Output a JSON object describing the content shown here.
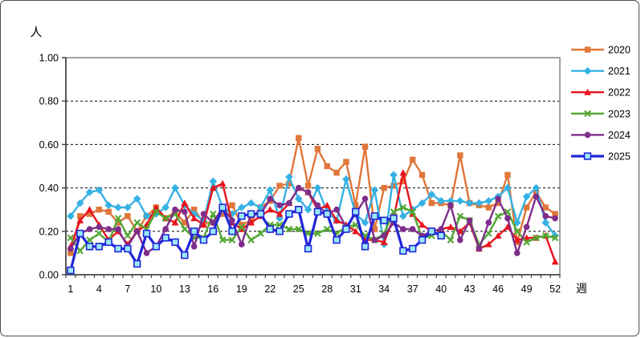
{
  "chart": {
    "y_axis_title": "人",
    "x_axis_title": "週",
    "y_tick_labels": [
      "0.00",
      "0.20",
      "0.40",
      "0.60",
      "0.80",
      "1.00"
    ],
    "x_tick_labels": [
      1,
      4,
      7,
      10,
      13,
      16,
      19,
      22,
      25,
      28,
      31,
      34,
      37,
      40,
      43,
      46,
      49,
      52
    ],
    "legend_labels": [
      "2020",
      "2021",
      "2022",
      "2023",
      "2024",
      "2025"
    ]
  },
  "chart_data": {
    "type": "line",
    "title": "",
    "xlabel": "週",
    "ylabel": "人",
    "x_min": 1,
    "x_max": 52,
    "x_ticks": [
      1,
      4,
      7,
      10,
      13,
      16,
      19,
      22,
      25,
      28,
      31,
      34,
      37,
      40,
      43,
      46,
      49,
      52
    ],
    "ylim": [
      0,
      1
    ],
    "y_tick_step": 0.2,
    "grid": "horizontal-dashed",
    "legend_position": "right",
    "series": [
      {
        "name": "2020",
        "color": "#E0763A",
        "marker": "square",
        "line_width": 2.4,
        "values": [
          0.1,
          0.27,
          0.28,
          0.3,
          0.29,
          0.24,
          0.27,
          0.2,
          0.27,
          0.31,
          0.26,
          0.29,
          0.24,
          0.3,
          0.24,
          0.24,
          0.28,
          0.32,
          0.23,
          0.25,
          0.31,
          0.34,
          0.41,
          0.42,
          0.63,
          0.41,
          0.58,
          0.5,
          0.47,
          0.52,
          0.32,
          0.59,
          0.21,
          0.4,
          0.41,
          0.43,
          0.53,
          0.46,
          0.33,
          0.33,
          0.32,
          0.55,
          0.33,
          0.32,
          0.31,
          0.33,
          0.46,
          0.15,
          0.31,
          0.38,
          0.31,
          0.28
        ]
      },
      {
        "name": "2021",
        "color": "#35B1E4",
        "marker": "diamond",
        "line_width": 2.4,
        "values": [
          0.27,
          0.33,
          0.38,
          0.39,
          0.32,
          0.31,
          0.31,
          0.35,
          0.27,
          0.28,
          0.31,
          0.4,
          0.32,
          0.28,
          0.25,
          0.43,
          0.31,
          0.28,
          0.31,
          0.33,
          0.31,
          0.39,
          0.26,
          0.45,
          0.35,
          0.3,
          0.4,
          0.29,
          0.25,
          0.44,
          0.28,
          0.24,
          0.39,
          0.14,
          0.46,
          0.27,
          0.3,
          0.33,
          0.37,
          0.34,
          0.34,
          0.34,
          0.33,
          0.33,
          0.34,
          0.36,
          0.4,
          0.24,
          0.36,
          0.4,
          0.24,
          0.18
        ]
      },
      {
        "name": "2022",
        "color": "#E9141D",
        "marker": "triangle",
        "line_width": 2.4,
        "values": [
          0.13,
          0.25,
          0.3,
          0.23,
          0.16,
          0.2,
          0.14,
          0.2,
          0.23,
          0.31,
          0.26,
          0.24,
          0.33,
          0.26,
          0.23,
          0.4,
          0.42,
          0.24,
          0.21,
          0.24,
          0.27,
          0.3,
          0.28,
          0.33,
          0.4,
          0.38,
          0.3,
          0.32,
          0.25,
          0.23,
          0.2,
          0.16,
          0.16,
          0.15,
          0.26,
          0.47,
          0.28,
          0.23,
          0.2,
          0.21,
          0.22,
          0.2,
          0.24,
          0.12,
          0.14,
          0.18,
          0.22,
          0.16,
          0.17,
          0.17,
          0.18,
          0.06
        ]
      },
      {
        "name": "2023",
        "color": "#53A733",
        "marker": "x",
        "line_width": 2.4,
        "values": [
          0.17,
          0.11,
          0.16,
          0.19,
          0.15,
          0.26,
          0.18,
          0.24,
          0.21,
          0.29,
          0.26,
          0.28,
          0.21,
          0.17,
          0.17,
          0.28,
          0.16,
          0.16,
          0.22,
          0.16,
          0.19,
          0.23,
          0.23,
          0.21,
          0.21,
          0.19,
          0.19,
          0.21,
          0.19,
          0.22,
          0.23,
          0.18,
          0.16,
          0.19,
          0.29,
          0.31,
          0.29,
          0.17,
          0.18,
          0.2,
          0.16,
          0.27,
          0.25,
          0.14,
          0.19,
          0.27,
          0.29,
          0.2,
          0.15,
          0.17,
          0.18,
          0.17
        ]
      },
      {
        "name": "2024",
        "color": "#7E2D8A",
        "marker": "circle",
        "line_width": 2.4,
        "values": [
          0.12,
          0.19,
          0.21,
          0.22,
          0.21,
          0.21,
          0.13,
          0.2,
          0.1,
          0.13,
          0.21,
          0.3,
          0.29,
          0.13,
          0.28,
          0.24,
          0.31,
          0.25,
          0.14,
          0.28,
          0.28,
          0.35,
          0.32,
          0.33,
          0.4,
          0.38,
          0.32,
          0.28,
          0.3,
          0.22,
          0.28,
          0.35,
          0.16,
          0.18,
          0.24,
          0.21,
          0.21,
          0.18,
          0.2,
          0.21,
          0.32,
          0.16,
          0.25,
          0.12,
          0.24,
          0.35,
          0.26,
          0.1,
          0.22,
          0.36,
          0.27,
          0.26
        ]
      },
      {
        "name": "2025",
        "color": "#2126D8",
        "marker": "open-square",
        "marker_fill": "#9BE8F7",
        "line_width": 3.2,
        "values": [
          0.02,
          0.19,
          0.13,
          0.13,
          0.15,
          0.12,
          0.12,
          0.05,
          0.19,
          0.13,
          0.17,
          0.15,
          0.09,
          0.2,
          0.16,
          0.2,
          0.31,
          0.2,
          0.27,
          0.28,
          0.28,
          0.21,
          0.2,
          0.28,
          0.3,
          0.12,
          0.29,
          0.28,
          0.16,
          0.21,
          0.29,
          0.13,
          0.27,
          0.25,
          0.26,
          0.11,
          0.12,
          0.16,
          0.2,
          0.18,
          null,
          null,
          null,
          null,
          null,
          null,
          null,
          null,
          null,
          null,
          null,
          null
        ]
      }
    ]
  }
}
